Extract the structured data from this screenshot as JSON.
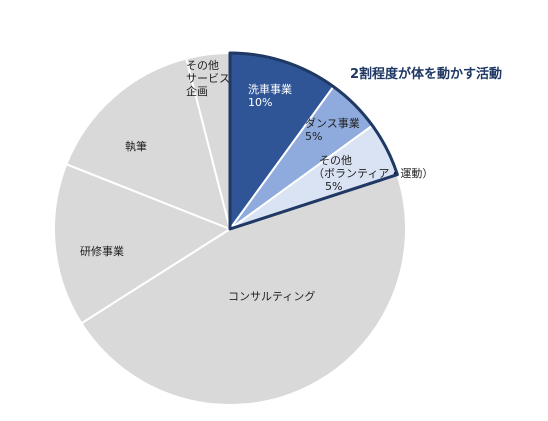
{
  "chart_data": {
    "type": "pie",
    "start_angle_deg": 0,
    "direction": "clockwise",
    "slices": [
      {
        "key": "wash",
        "lines": [
          "洗車事業",
          "10%"
        ],
        "value": 10,
        "color": "#2f5597",
        "text_color": "#ffffff"
      },
      {
        "key": "dance",
        "lines": [
          "ダンス事業",
          "5%"
        ],
        "value": 5,
        "color": "#8faadc",
        "text_color": "#1f1f1f"
      },
      {
        "key": "other",
        "lines": [
          "その他",
          "（ボランティア・運動）",
          "5%"
        ],
        "value": 5,
        "color": "#dae3f3",
        "text_color": "#1f1f1f"
      },
      {
        "key": "consult",
        "lines": [
          "コンサルティング"
        ],
        "value": 46,
        "color": "#d9d9d9",
        "text_color": "#1f1f1f"
      },
      {
        "key": "training",
        "lines": [
          "研修事業"
        ],
        "value": 15,
        "color": "#d9d9d9",
        "text_color": "#1f1f1f"
      },
      {
        "key": "writing",
        "lines": [
          "執筆"
        ],
        "value": 15,
        "color": "#d9d9d9",
        "text_color": "#1f1f1f"
      },
      {
        "key": "service",
        "lines": [
          "その他",
          "サービス",
          "企画"
        ],
        "value": 4,
        "color": "#d9d9d9",
        "text_color": "#1f1f1f"
      }
    ],
    "highlighted": [
      "wash",
      "dance",
      "other"
    ],
    "highlight_outline_color": "#1f3864",
    "annotation": "2割程度が体を動かす活動"
  }
}
